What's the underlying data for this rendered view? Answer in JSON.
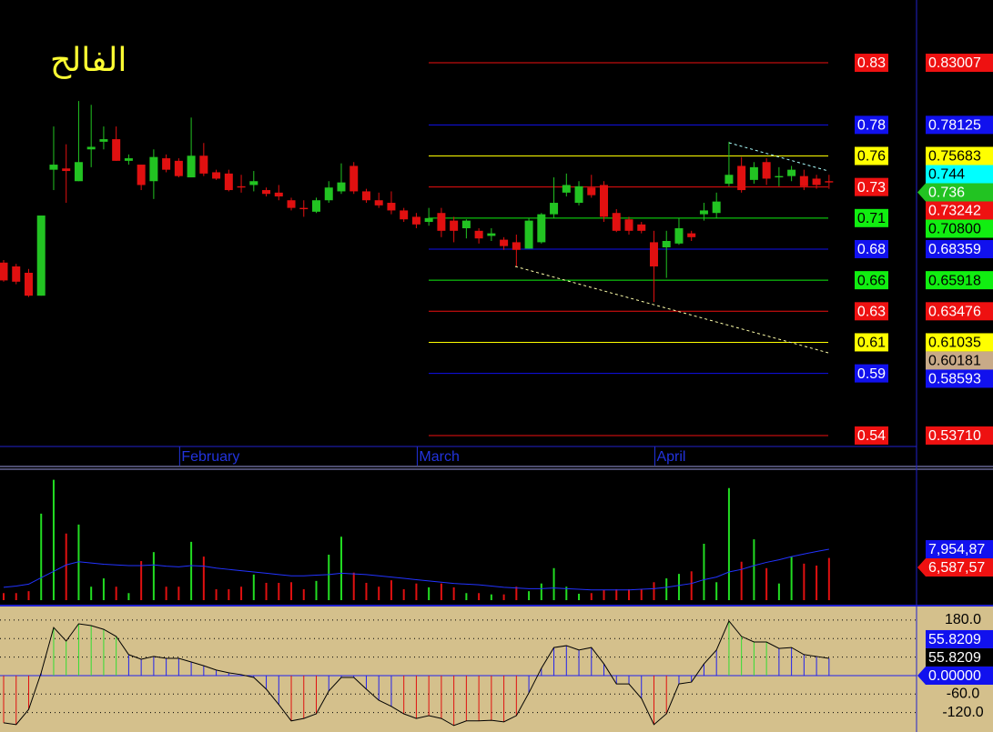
{
  "chart_data": [
    {
      "type": "candlestick",
      "title": "الفالح",
      "categories": [
        null,
        null,
        null,
        null,
        null,
        null,
        null,
        null,
        null,
        null,
        null,
        null,
        null,
        null,
        "February",
        null,
        null,
        null,
        null,
        null,
        null,
        null,
        null,
        null,
        null,
        null,
        null,
        null,
        null,
        null,
        null,
        null,
        null,
        "March",
        null,
        null,
        null,
        null,
        null,
        null,
        null,
        null,
        null,
        null,
        null,
        null,
        null,
        null,
        null,
        null,
        null,
        null,
        "April",
        null,
        null,
        null,
        null,
        null,
        null,
        null,
        null,
        null,
        null,
        null,
        null,
        null,
        null
      ],
      "open": [
        0.673,
        0.67,
        0.665,
        0.647,
        0.746,
        0.747,
        0.737,
        0.762,
        0.768,
        0.77,
        0.753,
        0.75,
        0.737,
        0.755,
        0.753,
        0.74,
        0.757,
        0.744,
        0.743,
        0.733,
        0.734,
        0.73,
        0.728,
        0.722,
        0.716,
        0.713,
        0.722,
        0.729,
        0.749,
        0.729,
        0.722,
        0.72,
        0.714,
        0.709,
        0.705,
        0.712,
        0.706,
        0.7,
        0.698,
        0.694,
        0.691,
        0.689,
        0.684,
        0.689,
        0.711,
        0.728,
        0.72,
        0.732,
        0.734,
        0.712,
        0.707,
        0.703,
        0.689,
        0.685,
        0.688,
        0.696,
        0.711,
        0.712,
        0.735,
        0.749,
        0.738,
        0.752,
        0.74,
        0.741,
        0.741,
        0.739,
        0.737
      ],
      "high": [
        0.675,
        0.672,
        0.668,
        0.71,
        0.78,
        0.766,
        0.8,
        0.797,
        0.78,
        0.78,
        0.758,
        0.75,
        0.762,
        0.758,
        0.755,
        0.787,
        0.767,
        0.746,
        0.746,
        0.742,
        0.745,
        0.732,
        0.734,
        0.724,
        0.722,
        0.724,
        0.737,
        0.751,
        0.752,
        0.731,
        0.728,
        0.729,
        0.716,
        0.712,
        0.716,
        0.716,
        0.709,
        0.707,
        0.7,
        0.7,
        0.693,
        0.695,
        0.708,
        0.712,
        0.74,
        0.743,
        0.737,
        0.742,
        0.737,
        0.715,
        0.709,
        0.705,
        0.698,
        0.698,
        0.708,
        0.698,
        0.72,
        0.728,
        0.768,
        0.756,
        0.752,
        0.755,
        0.748,
        0.749,
        0.746,
        0.742,
        0.742
      ],
      "low": [
        0.658,
        0.656,
        0.646,
        0.647,
        0.73,
        0.72,
        0.737,
        0.748,
        0.762,
        0.753,
        0.75,
        0.73,
        0.723,
        0.744,
        0.74,
        0.74,
        0.741,
        0.738,
        0.729,
        0.728,
        0.729,
        0.725,
        0.722,
        0.714,
        0.709,
        0.712,
        0.72,
        0.727,
        0.727,
        0.72,
        0.716,
        0.711,
        0.705,
        0.7,
        0.702,
        0.693,
        0.689,
        0.692,
        0.688,
        0.69,
        0.683,
        0.67,
        0.684,
        0.688,
        0.708,
        0.725,
        0.718,
        0.724,
        0.705,
        0.697,
        0.695,
        0.696,
        0.642,
        0.661,
        0.687,
        0.69,
        0.706,
        0.708,
        0.733,
        0.728,
        0.735,
        0.734,
        0.733,
        0.737,
        0.73,
        0.731,
        0.731
      ],
      "close": [
        0.659,
        0.658,
        0.647,
        0.71,
        0.75,
        0.745,
        0.752,
        0.764,
        0.77,
        0.753,
        0.755,
        0.734,
        0.756,
        0.746,
        0.741,
        0.757,
        0.743,
        0.739,
        0.73,
        0.732,
        0.737,
        0.727,
        0.725,
        0.716,
        0.715,
        0.722,
        0.732,
        0.736,
        0.729,
        0.722,
        0.718,
        0.714,
        0.707,
        0.703,
        0.708,
        0.698,
        0.698,
        0.706,
        0.692,
        0.696,
        0.686,
        0.683,
        0.706,
        0.711,
        0.72,
        0.734,
        0.733,
        0.726,
        0.709,
        0.698,
        0.698,
        0.698,
        0.67,
        0.69,
        0.7,
        0.693,
        0.714,
        0.721,
        0.742,
        0.73,
        0.748,
        0.739,
        0.741,
        0.746,
        0.733,
        0.734,
        0.736
      ],
      "up_color": "#22c322",
      "down_color": "#e01010",
      "ylim": [
        0.5292,
        0.8794
      ],
      "levels": [
        {
          "value": 0.83007,
          "label": "0.83",
          "axis_label": "0.83007",
          "color": "#ee1111"
        },
        {
          "value": 0.78125,
          "label": "0.78",
          "axis_label": "0.78125",
          "color": "#1111ee"
        },
        {
          "value": 0.75683,
          "label": "0.76",
          "axis_label": "0.75683",
          "color": "#ffff00"
        },
        {
          "value": 0.73242,
          "label": "0.73",
          "axis_label": "0.73242",
          "color": "#ee1111"
        },
        {
          "value": 0.708,
          "label": "0.71",
          "axis_label": "0.70800",
          "color": "#11ee11"
        },
        {
          "value": 0.68359,
          "label": "0.68",
          "axis_label": "0.68359",
          "color": "#1111ee"
        },
        {
          "value": 0.65918,
          "label": "0.66",
          "axis_label": "0.65918",
          "color": "#11ee11"
        },
        {
          "value": 0.63476,
          "label": "0.63",
          "axis_label": "0.63476",
          "color": "#ee1111"
        },
        {
          "value": 0.61035,
          "label": "0.61",
          "axis_label": "0.61035",
          "color": "#ffff00"
        },
        {
          "value": 0.58593,
          "label": "0.59",
          "axis_label": "0.58593",
          "color": "#1111ee"
        },
        {
          "value": 0.5371,
          "label": "0.54",
          "axis_label": "0.53710",
          "color": "#ee1111"
        }
      ],
      "markers": [
        {
          "value": 0.744,
          "label": "0.744",
          "color": "#00ffff"
        },
        {
          "value": 0.736,
          "label": "0.736",
          "color": "#22c322",
          "pointer": true
        },
        {
          "value": 0.60181,
          "label": "0.60181",
          "color": "#c8aa88"
        }
      ]
    },
    {
      "type": "volume",
      "values": [
        1100000,
        1100000,
        1400000,
        13500000,
        18800000,
        10400000,
        11800000,
        2100000,
        3400000,
        2100000,
        1100000,
        6100000,
        7500000,
        2100000,
        2100000,
        9100000,
        6800000,
        1700000,
        1700000,
        2100000,
        4000000,
        2700000,
        2700000,
        2800000,
        1700000,
        3000000,
        7100000,
        9900000,
        4300000,
        2700000,
        2100000,
        3100000,
        1700000,
        2600000,
        2000000,
        2600000,
        2000000,
        1100000,
        1100000,
        900000,
        900000,
        2100000,
        1400000,
        2600000,
        5000000,
        2100000,
        1000000,
        1100000,
        1600000,
        1700000,
        1700000,
        1700000,
        2800000,
        3400000,
        4100000,
        4500000,
        8800000,
        2800000,
        17500000,
        6000000,
        9500000,
        5000000,
        2600000,
        6800000,
        5700000,
        5400000,
        6587570
      ],
      "ma": [
        2000000,
        2200000,
        2500000,
        3500000,
        4500000,
        5500000,
        6000000,
        5800000,
        5600000,
        5500000,
        5400000,
        5400000,
        5500000,
        5300000,
        5200000,
        5400000,
        5300000,
        5000000,
        4800000,
        4600000,
        4400000,
        4200000,
        4000000,
        3800000,
        3800000,
        3900000,
        4000000,
        4200000,
        4100000,
        4000000,
        3800000,
        3600000,
        3400000,
        3200000,
        3000000,
        2800000,
        2600000,
        2500000,
        2400000,
        2200000,
        2000000,
        1900000,
        1800000,
        1800000,
        1900000,
        1800000,
        1700000,
        1600000,
        1600000,
        1600000,
        1600000,
        1700000,
        1800000,
        2000000,
        2300000,
        2600000,
        3200000,
        3600000,
        4400000,
        4800000,
        5400000,
        5900000,
        6300000,
        6800000,
        7200000,
        7600000,
        7954870
      ],
      "ma_color": "#2233ff",
      "up_color": "#22dd22",
      "down_color": "#e01010",
      "ylim": [
        0,
        20300000
      ],
      "markers": [
        {
          "value": 7954870,
          "label": "7,954,87",
          "color": "#1111ee"
        },
        {
          "value": 6587570,
          "label": "6,587,57",
          "color": "#ee1111",
          "pointer": true
        }
      ]
    },
    {
      "type": "oscillator",
      "values": [
        -153,
        -159,
        -110,
        9,
        156,
        112,
        168,
        162,
        150,
        127,
        68,
        53,
        62,
        56,
        56,
        44,
        32,
        18,
        9,
        3,
        -6,
        -44,
        -94,
        -147,
        -139,
        -124,
        -50,
        -6,
        -6,
        -44,
        -80,
        -100,
        -124,
        -139,
        -130,
        -139,
        -162,
        -147,
        -147,
        -145,
        -150,
        -130,
        -56,
        24,
        91,
        97,
        83,
        91,
        38,
        -27,
        -27,
        -74,
        -159,
        -124,
        -27,
        -21,
        38,
        83,
        177,
        127,
        109,
        109,
        88,
        91,
        68,
        62,
        55.8209
      ],
      "ylim": [
        -183,
        227
      ],
      "yticks": [
        {
          "value": 180,
          "label": "180.0"
        },
        {
          "value": -60,
          "label": "-60.0"
        },
        {
          "value": -120,
          "label": "-120.0"
        }
      ],
      "gridlines": [
        180,
        120,
        60,
        -60,
        -120
      ],
      "bands": [
        -100,
        100
      ],
      "up_color": "#33dd33",
      "mid_color": "#2222ee",
      "down_color": "#e01010",
      "line_color": "#000000",
      "zero_color": "#2222ee",
      "background": "#d4c08c",
      "markers": [
        {
          "value": 55.8209,
          "label": "55.8209",
          "color": "#1111ee"
        },
        {
          "value": 55.8209,
          "label": "55.8209",
          "color": "#000000"
        },
        {
          "value": 0,
          "label": "0.00000",
          "color": "#1111ee",
          "pointer": true
        }
      ]
    }
  ]
}
